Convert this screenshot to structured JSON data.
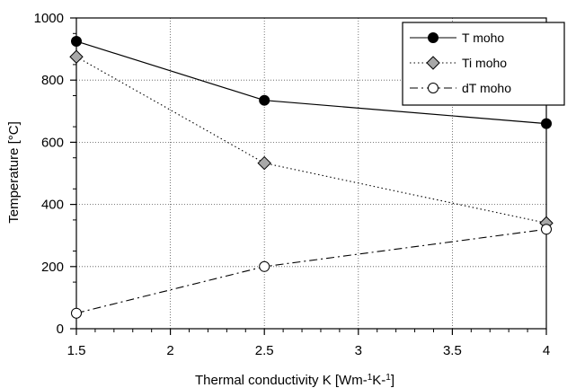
{
  "chart_data": {
    "type": "line",
    "xlabel_main": "Thermal conductivity  K  [Wm-",
    "xlabel_sup1": "1",
    "xlabel_mid": "K-",
    "xlabel_sup2": "1",
    "xlabel_end": "]",
    "ylabel": "Temperature  [°C]",
    "xlim": [
      1.5,
      4
    ],
    "ylim": [
      0,
      1000
    ],
    "x_ticks": [
      "1.5",
      "2",
      "2.5",
      "3",
      "3.5",
      "4"
    ],
    "y_ticks": [
      "0",
      "200",
      "400",
      "600",
      "800",
      "1000"
    ],
    "grid": true,
    "legend_position": "top-right",
    "series": [
      {
        "name": "T moho",
        "line": "solid",
        "marker": "filled-circle",
        "x": [
          1.5,
          2.5,
          4
        ],
        "y": [
          925,
          735,
          660
        ]
      },
      {
        "name": "Ti moho",
        "line": "dotted",
        "marker": "diamond",
        "x": [
          1.5,
          2.5,
          4
        ],
        "y": [
          875,
          533,
          340
        ]
      },
      {
        "name": "dT moho",
        "line": "dash-dot",
        "marker": "open-circle",
        "x": [
          1.5,
          2.5,
          4
        ],
        "y": [
          50,
          200,
          320
        ]
      }
    ]
  }
}
